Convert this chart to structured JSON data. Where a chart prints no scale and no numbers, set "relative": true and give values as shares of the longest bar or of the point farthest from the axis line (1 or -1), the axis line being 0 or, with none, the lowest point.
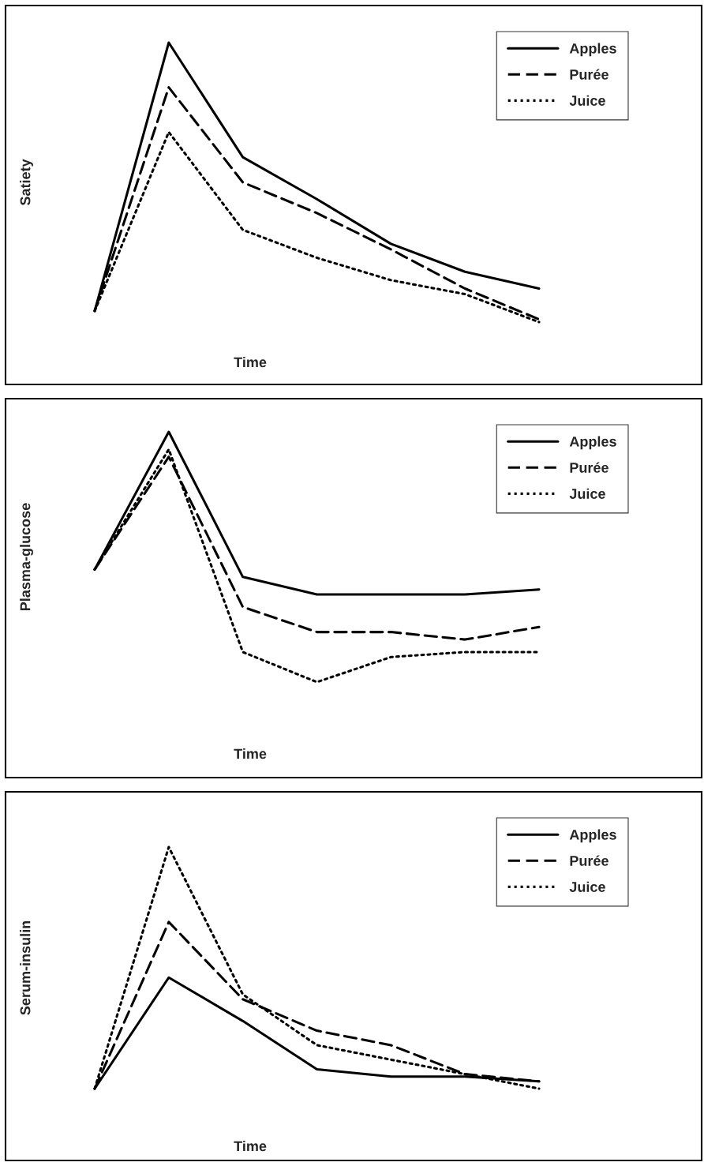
{
  "chart_data": [
    {
      "type": "line",
      "relative": true,
      "xlabel": "Time",
      "ylabel": "Satiety",
      "legend": "top right",
      "categories": [
        null,
        null,
        null,
        null,
        null,
        null,
        null
      ],
      "series": [
        {
          "name": "Apples",
          "color": "#000000",
          "line_style": "solid",
          "values": [
            0.04,
            1,
            0.59,
            0.44,
            0.28,
            0.18,
            0.12
          ]
        },
        {
          "name": "Purée",
          "color": "#000000",
          "line_style": "dashed",
          "values": [
            0.04,
            0.84,
            0.5,
            0.39,
            0.26,
            0.12,
            0.01
          ]
        },
        {
          "name": "Juice",
          "color": "#000000",
          "line_style": "dotted",
          "values": [
            0.04,
            0.68,
            0.33,
            0.23,
            0.15,
            0.1,
            0
          ]
        }
      ]
    },
    {
      "type": "line",
      "relative": true,
      "xlabel": "Time",
      "ylabel": "Plasma-glucose",
      "legend": "top right",
      "categories": [
        null,
        null,
        null,
        null,
        null,
        null,
        null
      ],
      "series": [
        {
          "name": "Apples",
          "color": "#000000",
          "line_style": "solid",
          "values": [
            0.45,
            1,
            0.42,
            0.35,
            0.35,
            0.35,
            0.37
          ]
        },
        {
          "name": "Purée",
          "color": "#000000",
          "line_style": "dashed",
          "values": [
            0.45,
            0.9,
            0.3,
            0.2,
            0.2,
            0.17,
            0.22
          ]
        },
        {
          "name": "Juice",
          "color": "#000000",
          "line_style": "dotted",
          "values": [
            0.45,
            0.93,
            0.12,
            0,
            0.1,
            0.12,
            0.12
          ]
        }
      ]
    },
    {
      "type": "line",
      "relative": true,
      "xlabel": "Time",
      "ylabel": "Serum-insulin",
      "legend": "top right",
      "categories": [
        null,
        null,
        null,
        null,
        null,
        null,
        null
      ],
      "series": [
        {
          "name": "Apples",
          "color": "#000000",
          "line_style": "solid",
          "values": [
            0,
            0.46,
            0.28,
            0.08,
            0.05,
            0.05,
            0.03
          ]
        },
        {
          "name": "Purée",
          "color": "#000000",
          "line_style": "dashed",
          "values": [
            0,
            0.69,
            0.37,
            0.24,
            0.18,
            0.06,
            0.03
          ]
        },
        {
          "name": "Juice",
          "color": "#000000",
          "line_style": "dotted",
          "values": [
            0,
            1,
            0.39,
            0.18,
            0.12,
            0.06,
            0
          ]
        }
      ]
    }
  ]
}
